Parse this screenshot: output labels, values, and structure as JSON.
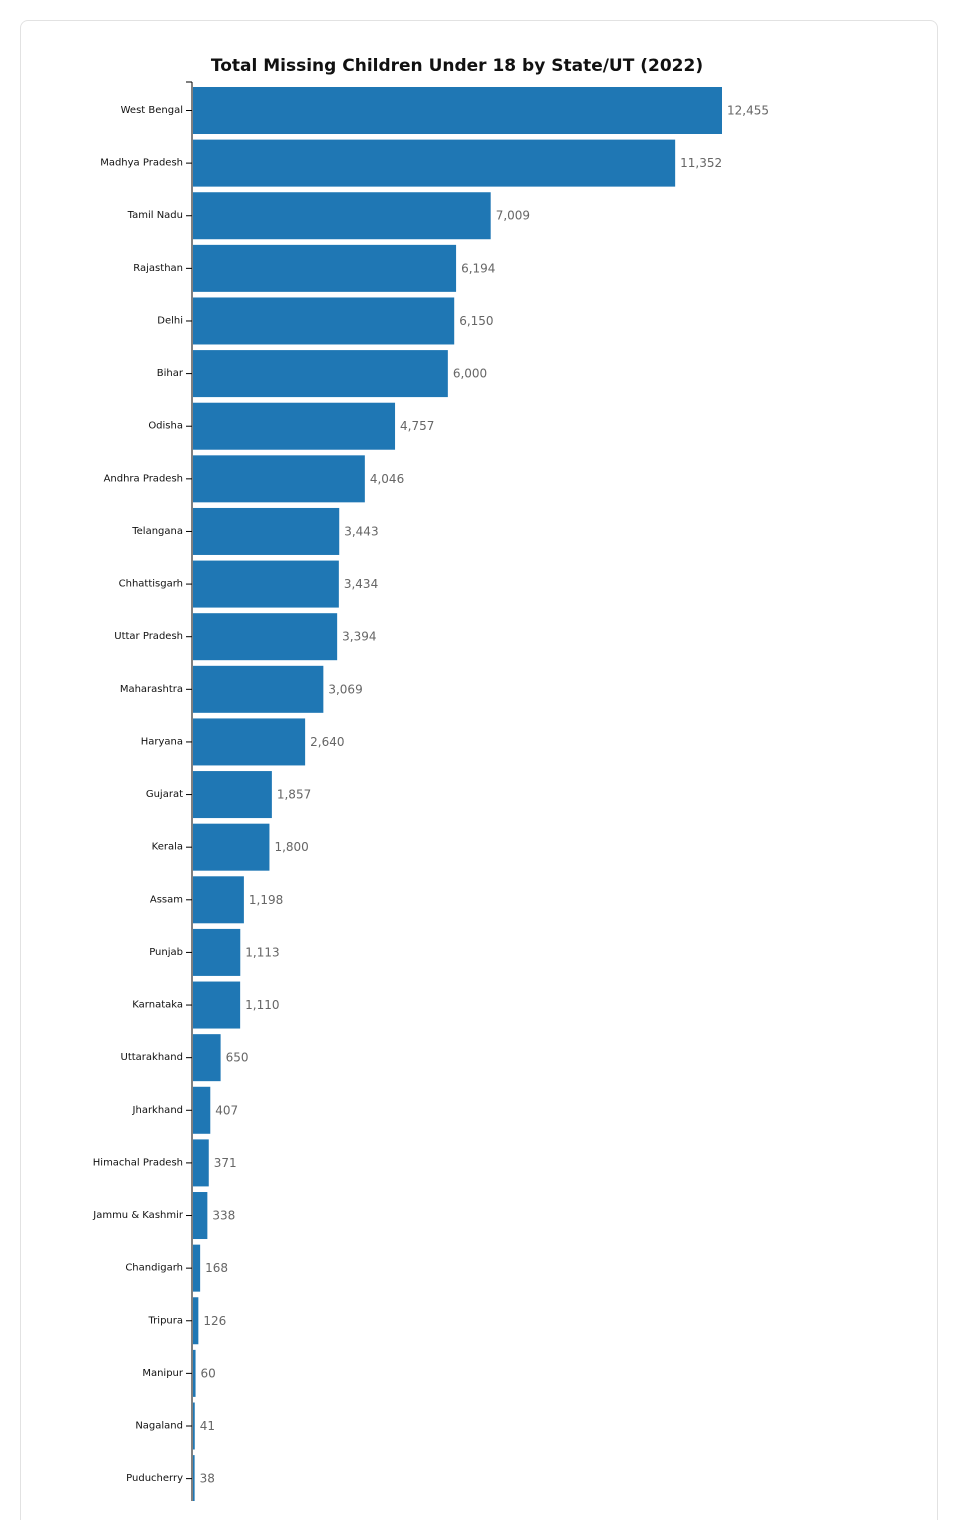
{
  "chart_data": {
    "type": "bar",
    "orientation": "horizontal",
    "title": "Total Missing Children Under 18 by State/UT (2022)",
    "xlabel": "",
    "ylabel": "",
    "categories": [
      "West Bengal",
      "Madhya Pradesh",
      "Tamil Nadu",
      "Rajasthan",
      "Delhi",
      "Bihar",
      "Odisha",
      "Andhra Pradesh",
      "Telangana",
      "Chhattisgarh",
      "Uttar Pradesh",
      "Maharashtra",
      "Haryana",
      "Gujarat",
      "Kerala",
      "Assam",
      "Punjab",
      "Karnataka",
      "Uttarakhand",
      "Jharkhand",
      "Himachal Pradesh",
      "Jammu & Kashmir",
      "Chandigarh",
      "Tripura",
      "Manipur",
      "Nagaland",
      "Puducherry"
    ],
    "values": [
      12455,
      11352,
      7009,
      6194,
      6150,
      6000,
      4757,
      4046,
      3443,
      3434,
      3394,
      3069,
      2640,
      1857,
      1800,
      1198,
      1113,
      1110,
      650,
      407,
      371,
      338,
      168,
      126,
      60,
      41,
      38
    ],
    "value_labels": [
      "12,455",
      "11,352",
      "7,009",
      "6,194",
      "6,150",
      "6,000",
      "4,757",
      "4,046",
      "3,443",
      "3,434",
      "3,394",
      "3,069",
      "2,640",
      "1,857",
      "1,800",
      "1,198",
      "1,113",
      "1,110",
      "650",
      "407",
      "371",
      "338",
      "168",
      "126",
      "60",
      "41",
      "38"
    ],
    "xlim": [
      0,
      12455
    ],
    "grid": false,
    "legend": "none",
    "bar_color": "#1f77b4"
  }
}
